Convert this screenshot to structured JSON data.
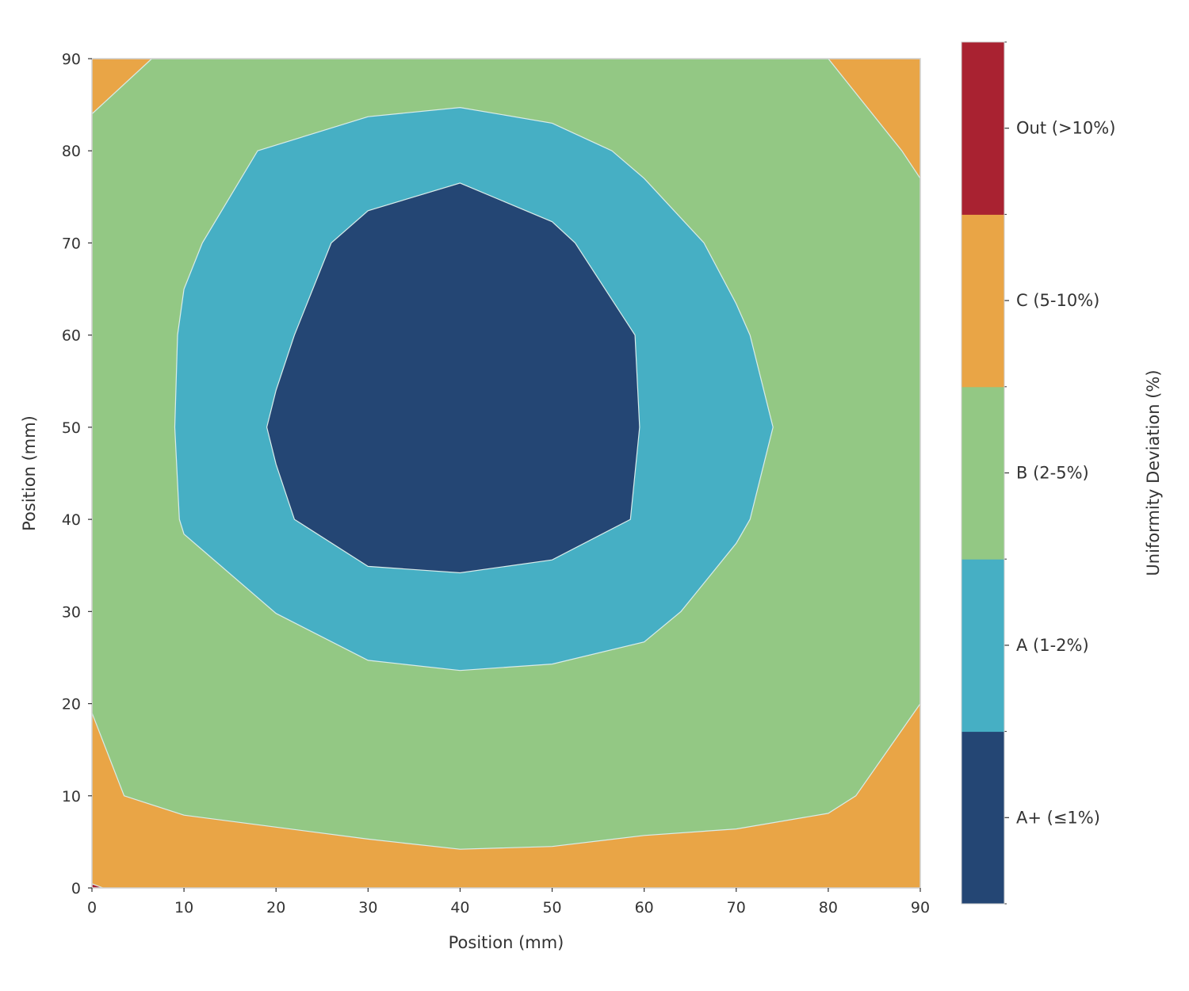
{
  "chart_data": {
    "type": "contour",
    "xlabel": "Position (mm)",
    "ylabel": "Position (mm)",
    "xlim": [
      0,
      90
    ],
    "ylim": [
      0,
      90
    ],
    "xticks": [
      0,
      10,
      20,
      30,
      40,
      50,
      60,
      70,
      80,
      90
    ],
    "yticks": [
      0,
      10,
      20,
      30,
      40,
      50,
      60,
      70,
      80,
      90
    ],
    "colorbar": {
      "label": "Uniformity Deviation (%)",
      "levels": [
        {
          "label": "A+ (≤1%)",
          "color": "#244674"
        },
        {
          "label": "A (1-2%)",
          "color": "#46afc4"
        },
        {
          "label": "B (2-5%)",
          "color": "#93c884"
        },
        {
          "label": "C (5-10%)",
          "color": "#e9a546"
        },
        {
          "label": "Out (>10%)",
          "color": "#a92231"
        }
      ]
    },
    "regions": [
      {
        "level": "C (5-10%)",
        "color": "#e9a546",
        "polygon": [
          [
            0,
            0
          ],
          [
            90,
            0
          ],
          [
            90,
            90
          ],
          [
            0,
            90
          ]
        ]
      },
      {
        "level": "B (2-5%)",
        "color": "#93c884",
        "polygon": [
          [
            0,
            19
          ],
          [
            3.5,
            10
          ],
          [
            10,
            7.9
          ],
          [
            20,
            6.6
          ],
          [
            30,
            5.3
          ],
          [
            40,
            4.2
          ],
          [
            50,
            4.5
          ],
          [
            60,
            5.7
          ],
          [
            70,
            6.4
          ],
          [
            80,
            8.1
          ],
          [
            83,
            10
          ],
          [
            90,
            20
          ],
          [
            90,
            77
          ],
          [
            88,
            80
          ],
          [
            80,
            90
          ],
          [
            6.5,
            90
          ],
          [
            0,
            84
          ]
        ]
      },
      {
        "level": "A (1-2%)",
        "color": "#46afc4",
        "polygon": [
          [
            18,
            80
          ],
          [
            30,
            83.7
          ],
          [
            40,
            84.7
          ],
          [
            50,
            83
          ],
          [
            56.5,
            80
          ],
          [
            60,
            77
          ],
          [
            66.5,
            70
          ],
          [
            70,
            63.4
          ],
          [
            71.5,
            60
          ],
          [
            74,
            50
          ],
          [
            71.5,
            40
          ],
          [
            70,
            37.4
          ],
          [
            64,
            30
          ],
          [
            60,
            26.7
          ],
          [
            50,
            24.3
          ],
          [
            40,
            23.6
          ],
          [
            30,
            24.7
          ],
          [
            20,
            29.8
          ],
          [
            10,
            38.4
          ],
          [
            9.5,
            40
          ],
          [
            9,
            50
          ],
          [
            9.3,
            60
          ],
          [
            10,
            65
          ],
          [
            12,
            70
          ]
        ]
      },
      {
        "level": "A+ (≤1%)",
        "color": "#244674",
        "polygon": [
          [
            26,
            70
          ],
          [
            30,
            73.5
          ],
          [
            40,
            76.5
          ],
          [
            50,
            72.3
          ],
          [
            52.5,
            70
          ],
          [
            59,
            60
          ],
          [
            59.5,
            50
          ],
          [
            58.5,
            40
          ],
          [
            50,
            35.6
          ],
          [
            40,
            34.2
          ],
          [
            30,
            34.9
          ],
          [
            22,
            40
          ],
          [
            20,
            46
          ],
          [
            19,
            50
          ],
          [
            20,
            54
          ],
          [
            22,
            60
          ]
        ]
      },
      {
        "level": "Out (>10%)",
        "color": "#a92231",
        "polygon": [
          [
            0,
            0
          ],
          [
            1.2,
            0
          ],
          [
            0,
            0.45
          ]
        ]
      }
    ]
  }
}
